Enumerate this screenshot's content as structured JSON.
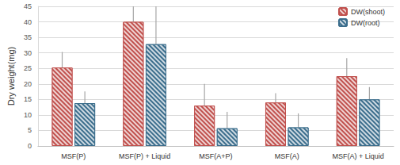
{
  "chart_data": {
    "type": "bar",
    "y_label": "Dry weight(mg)",
    "categories": [
      "MSF(P)",
      "MSF(P) + Liquid",
      "MSF(A+P)",
      "MSF(A)",
      "MSF(A) + Liquid"
    ],
    "series": [
      {
        "name": "DW(shoot)",
        "color": "#c0504d",
        "values": [
          25.3,
          40,
          13,
          14,
          22.5
        ],
        "error": [
          5,
          5,
          7,
          3,
          5.8
        ]
      },
      {
        "name": "DW(root)",
        "color": "#3b6d8c",
        "values": [
          13.8,
          32.8,
          5.7,
          6,
          15
        ],
        "error": [
          3.8,
          12.5,
          5.3,
          4.5,
          4
        ]
      }
    ],
    "ylim": [
      0,
      45
    ],
    "yticks": [
      0,
      5,
      10,
      15,
      20,
      25,
      30,
      35,
      40,
      45
    ],
    "grid": true,
    "legend": "top-right"
  }
}
